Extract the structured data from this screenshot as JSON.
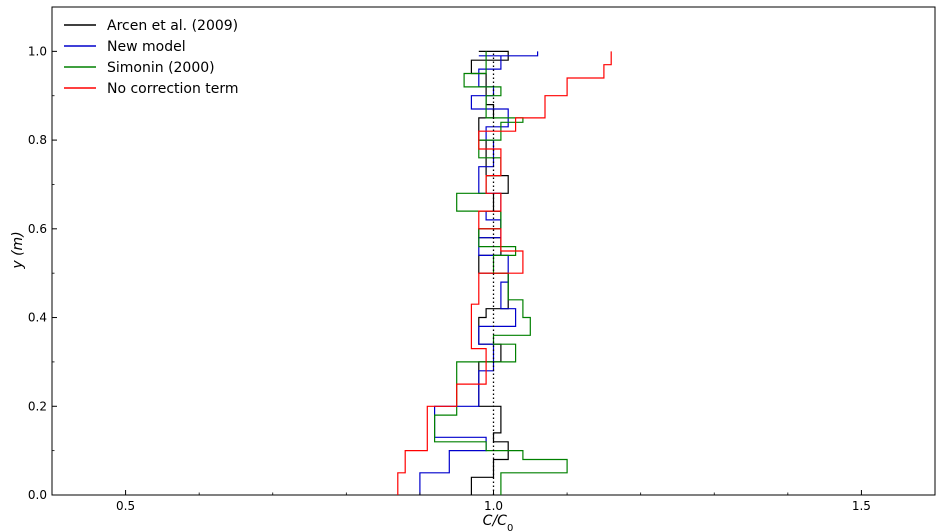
{
  "chart_data": {
    "type": "line",
    "xlabel": "C/C",
    "xlabel_sub": "0",
    "ylabel": "y (m)",
    "ylabel_unit": " (m)",
    "xlim": [
      0.4,
      1.6
    ],
    "ylim": [
      0.0,
      1.1
    ],
    "xticks": [
      0.5,
      1.0,
      1.5
    ],
    "xtick_labels": [
      "0.5",
      "1.0",
      "1.5"
    ],
    "yticks": [
      0.0,
      0.2,
      0.4,
      0.6,
      0.8,
      1.0
    ],
    "ytick_labels": [
      "0.0",
      "0.2",
      "0.4",
      "0.6",
      "0.8",
      "1.0"
    ],
    "grid": false,
    "legend_position": "top-left",
    "reference_line": {
      "x": 1.0,
      "style": "dotted",
      "color": "#000000"
    },
    "series": [
      {
        "name": "Arcen et al. (2009)",
        "color": "#000000",
        "x": [
          0.97,
          0.97,
          1.0,
          1.0,
          1.02,
          1.02,
          1.0,
          1.0,
          1.01,
          1.01,
          0.98,
          0.98,
          1.01,
          1.01,
          0.98,
          0.98,
          0.99,
          0.99,
          1.02,
          1.02,
          0.98,
          0.98,
          1.01,
          1.01,
          0.98,
          0.98,
          1.01,
          1.01,
          1.0,
          1.0,
          1.02,
          1.02,
          0.99,
          0.99,
          0.98,
          0.98,
          1.0,
          1.0,
          0.99,
          0.99,
          0.97,
          0.97,
          1.02,
          1.02,
          0.98,
          0.98,
          1.0,
          1.0,
          1.01,
          1.01,
          1.0,
          1.0,
          1.01,
          1.01
        ],
        "y": [
          0.0,
          0.04,
          0.04,
          0.08,
          0.08,
          0.12,
          0.12,
          0.14,
          0.14,
          0.2,
          0.2,
          0.3,
          0.3,
          0.34,
          0.34,
          0.4,
          0.4,
          0.42,
          0.42,
          0.5,
          0.5,
          0.54,
          0.54,
          0.58,
          0.58,
          0.6,
          0.6,
          0.64,
          0.64,
          0.68,
          0.68,
          0.72,
          0.72,
          0.8,
          0.8,
          0.85,
          0.85,
          0.88,
          0.88,
          0.95,
          0.95,
          0.98,
          0.98,
          1.0,
          1.0,
          1.0,
          1.0,
          1.0,
          1.0,
          1.0,
          1.0,
          1.0,
          1.0,
          1.0
        ]
      },
      {
        "name": "New model",
        "color": "#0000cc",
        "x": [
          0.9,
          0.9,
          0.94,
          0.94,
          0.99,
          0.99,
          0.92,
          0.92,
          0.98,
          0.98,
          1.0,
          1.0,
          0.98,
          0.98,
          1.03,
          1.03,
          1.01,
          1.01,
          1.02,
          1.02,
          0.98,
          0.98,
          1.01,
          1.01,
          0.99,
          0.99,
          1.01,
          1.01,
          0.98,
          0.98,
          1.0,
          1.0,
          0.99,
          0.99,
          1.02,
          1.02,
          0.97,
          0.97,
          1.0,
          1.0,
          0.98,
          0.98,
          1.01,
          1.01,
          0.98,
          0.98,
          1.06,
          1.06
        ],
        "y": [
          0.0,
          0.05,
          0.05,
          0.1,
          0.1,
          0.13,
          0.13,
          0.2,
          0.2,
          0.28,
          0.28,
          0.34,
          0.34,
          0.38,
          0.38,
          0.42,
          0.42,
          0.48,
          0.48,
          0.54,
          0.54,
          0.58,
          0.58,
          0.62,
          0.62,
          0.64,
          0.64,
          0.68,
          0.68,
          0.74,
          0.74,
          0.8,
          0.8,
          0.83,
          0.83,
          0.87,
          0.87,
          0.9,
          0.9,
          0.92,
          0.92,
          0.96,
          0.96,
          0.99,
          0.99,
          0.99,
          0.99,
          1.0
        ]
      },
      {
        "name": "Simonin (2000)",
        "color": "#008000",
        "x": [
          1.01,
          1.01,
          1.1,
          1.1,
          1.04,
          1.04,
          0.99,
          0.99,
          0.92,
          0.92,
          0.95,
          0.95,
          1.03,
          1.03,
          1.0,
          1.0,
          1.05,
          1.05,
          1.04,
          1.04,
          1.02,
          1.02,
          1.0,
          1.0,
          1.03,
          1.03,
          0.98,
          0.98,
          1.01,
          1.01,
          0.95,
          0.95,
          0.99,
          0.99,
          1.01,
          1.01,
          0.98,
          0.98,
          1.01,
          1.01,
          1.04,
          1.04,
          0.99,
          0.99,
          1.01,
          1.01,
          0.96,
          0.96,
          0.99,
          0.99
        ],
        "y": [
          0.0,
          0.05,
          0.05,
          0.08,
          0.08,
          0.1,
          0.1,
          0.12,
          0.12,
          0.18,
          0.18,
          0.3,
          0.3,
          0.34,
          0.34,
          0.36,
          0.36,
          0.4,
          0.4,
          0.44,
          0.44,
          0.5,
          0.5,
          0.54,
          0.54,
          0.56,
          0.56,
          0.6,
          0.6,
          0.64,
          0.64,
          0.68,
          0.68,
          0.72,
          0.72,
          0.76,
          0.76,
          0.8,
          0.8,
          0.84,
          0.84,
          0.85,
          0.85,
          0.9,
          0.9,
          0.92,
          0.92,
          0.95,
          0.95,
          1.0
        ]
      },
      {
        "name": "No correction term",
        "color": "#ff0000",
        "x": [
          0.87,
          0.87,
          0.88,
          0.88,
          0.91,
          0.91,
          0.95,
          0.95,
          0.99,
          0.99,
          0.97,
          0.97,
          0.98,
          0.98,
          1.04,
          1.04,
          1.01,
          1.01,
          0.98,
          0.98,
          1.01,
          1.01,
          0.99,
          0.99,
          1.01,
          1.01,
          0.98,
          0.98,
          1.03,
          1.03,
          1.07,
          1.07,
          1.1,
          1.1,
          1.15,
          1.15,
          1.16,
          1.16
        ],
        "y": [
          0.0,
          0.05,
          0.05,
          0.1,
          0.1,
          0.2,
          0.2,
          0.25,
          0.25,
          0.33,
          0.33,
          0.43,
          0.43,
          0.5,
          0.5,
          0.55,
          0.55,
          0.6,
          0.6,
          0.64,
          0.64,
          0.68,
          0.68,
          0.72,
          0.72,
          0.78,
          0.78,
          0.82,
          0.82,
          0.85,
          0.85,
          0.9,
          0.9,
          0.94,
          0.94,
          0.97,
          0.97,
          1.0
        ]
      }
    ]
  }
}
